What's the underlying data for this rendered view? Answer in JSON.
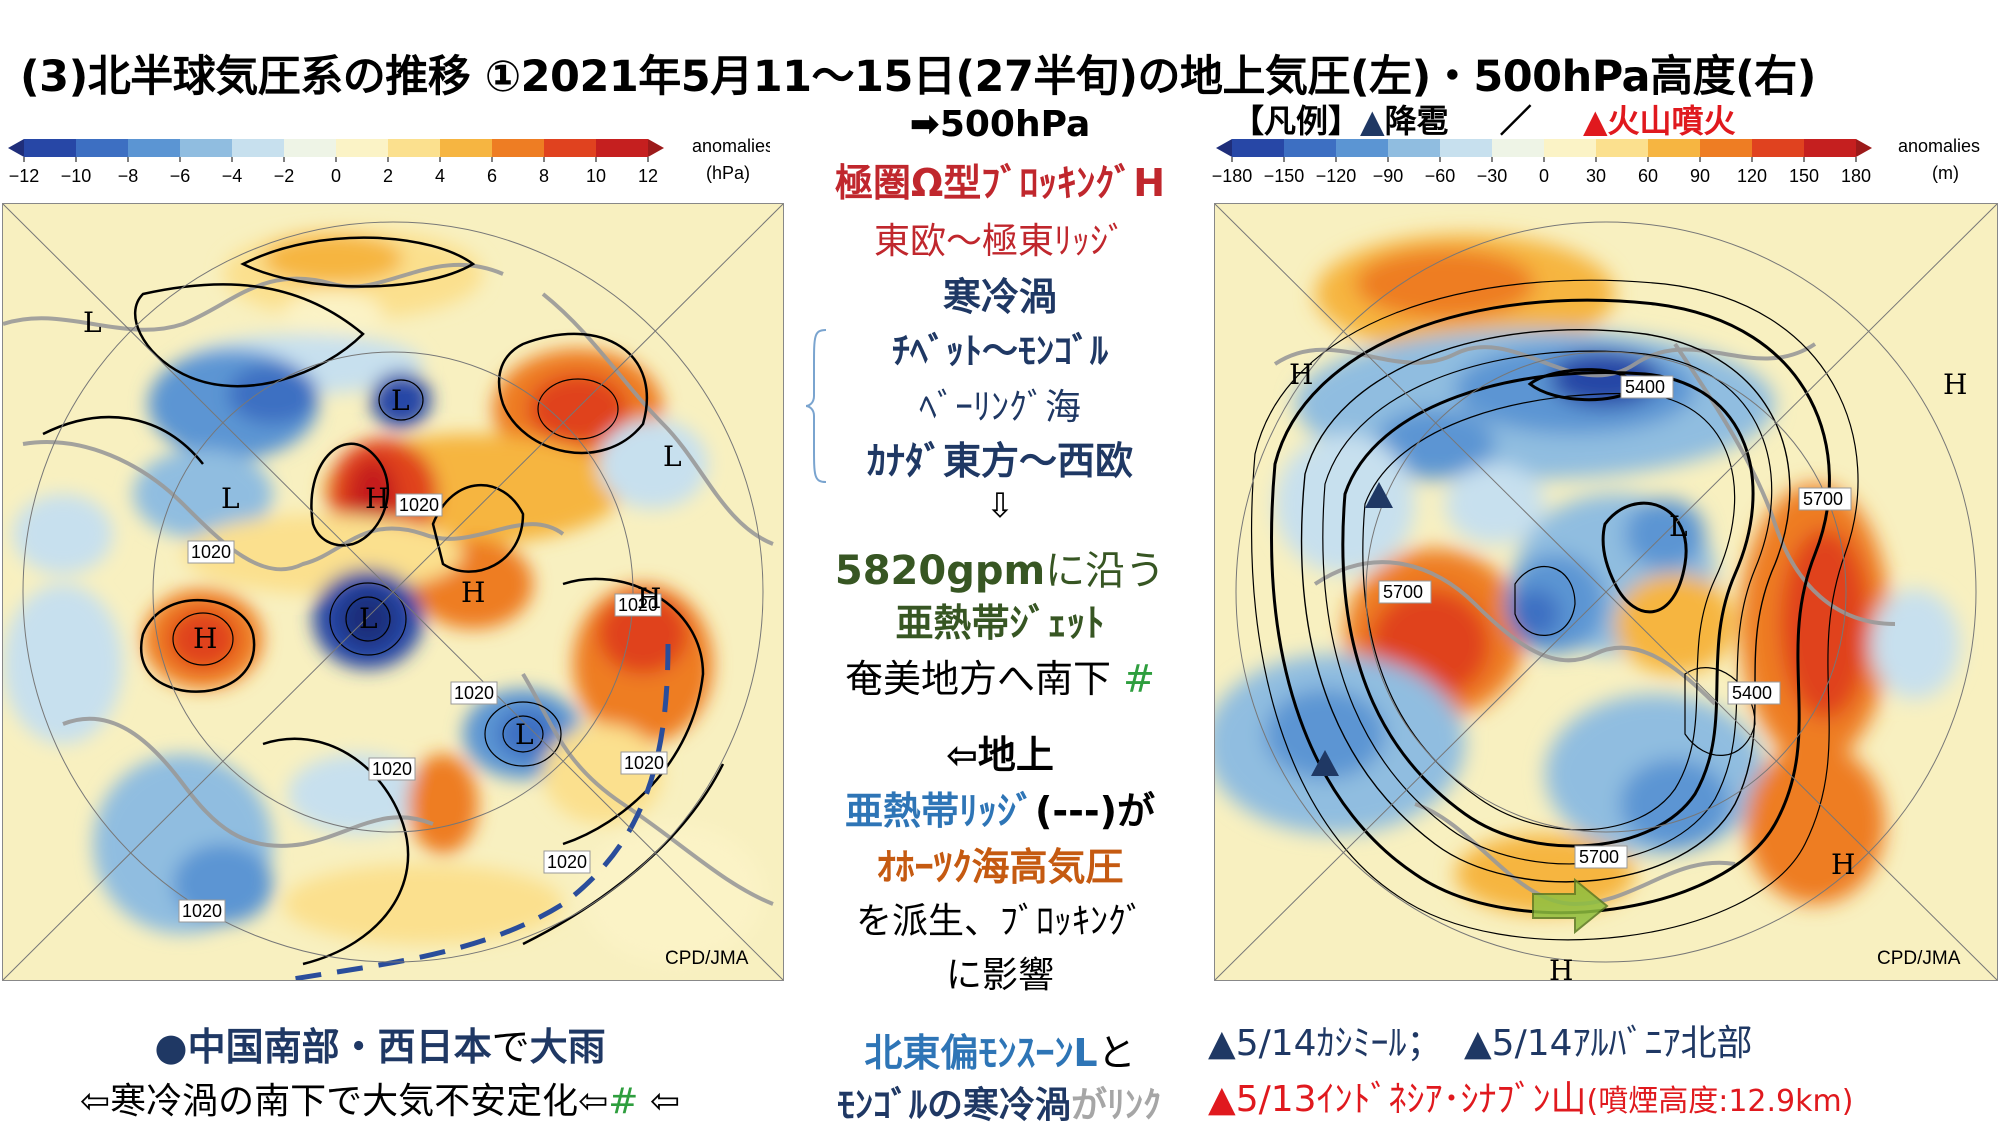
{
  "title": "(3)北半球気圧系の推移 ①2021年5月11～15日(27半旬)の地上気圧(左)・500hPa高度(右)",
  "legend": {
    "bracket": "【凡例】",
    "hail_mark": "▲",
    "hail_label": "降雹",
    "separator": "／",
    "volcano_mark": "▲",
    "volcano_label": "火山噴火"
  },
  "colors": {
    "dark_red": "#c0272d",
    "navy": "#1f3864",
    "green": "#375623",
    "blue": "#2e75b6",
    "orange": "#c55a11",
    "bright_red": "#e0191e",
    "gray": "#a6a6a6",
    "hash_green": "#2e9e3e"
  },
  "left_colorbar": {
    "ticks": [
      "−12",
      "−10",
      "−8",
      "−6",
      "−4",
      "−2",
      "0",
      "2",
      "4",
      "6",
      "8",
      "10",
      "12"
    ],
    "unit_top": "anomalies",
    "unit_bottom": "(hPa)"
  },
  "right_colorbar": {
    "ticks": [
      "−180",
      "−150",
      "−120",
      "−90",
      "−60",
      "−30",
      "0",
      "30",
      "60",
      "90",
      "120",
      "150",
      "180"
    ],
    "unit_top": "anomalies",
    "unit_bottom": "(m)"
  },
  "left_map": {
    "credit": "CPD/JMA",
    "isobar_labels": [
      "1020",
      "1020",
      "1020",
      "1020",
      "1020",
      "1020",
      "1020",
      "1020"
    ],
    "highs": [
      "H",
      "H",
      "H",
      "H"
    ],
    "lows": [
      "L",
      "L",
      "L",
      "L",
      "L",
      "L"
    ]
  },
  "right_map": {
    "credit": "CPD/JMA",
    "height_labels": [
      "5400",
      "5700",
      "5700",
      "5400",
      "5700"
    ],
    "highs": [
      "H",
      "H",
      "H",
      "H"
    ],
    "lows": [
      "L"
    ]
  },
  "center": {
    "arrow_500": "➡500hPa",
    "blocking": "極圏Ω型ﾌﾞﾛｯｷﾝｸﾞH",
    "ridge": "東欧～極東ﾘｯｼﾞ",
    "cold_vortex": "寒冷渦",
    "cv1": "ﾁﾍﾞｯﾄ～ﾓﾝｺﾞﾙ",
    "cv2": "ﾍﾞｰﾘﾝｸﾞ海",
    "cv3": "ｶﾅﾀﾞ東方～西欧",
    "down_arrow": "⇩",
    "gpm_value": "5820gpm",
    "gpm_suffix": "に沿う",
    "jet": "亜熱帯ｼﾞｪｯﾄ",
    "amami": "奄美地方へ南下",
    "hash": "#",
    "surface": "⇦地上",
    "subtrop_ridge": "亜熱帯ﾘｯｼﾞ",
    "dash_paren": "(---)",
    "ga": "が",
    "okhotsk": "ｵﾎｰﾂｸ海高気圧",
    "derive1": "を派生、ﾌﾞﾛｯｷﾝｸﾞ",
    "derive2": "に影響",
    "monsoon": "北東偏ﾓﾝｽｰﾝL",
    "to": "と",
    "mongol": "ﾓﾝｺﾞﾙの",
    "mongol_cv": "寒冷渦",
    "link": "がﾘﾝｸ"
  },
  "bottom_left": {
    "dot": "●",
    "region": "中国南部・西日本",
    "de": "で",
    "heavy_rain": "大雨",
    "line2_a": "⇦寒冷渦の南下で大気不安定化⇦",
    "hash": "#",
    "line2_b": "⇦"
  },
  "bottom_right": {
    "mark1": "▲",
    "ev1": "5/14ｶｼﾐｰﾙ；",
    "mark2": "▲",
    "ev2": "5/14ｱﾙﾊﾞﾆｱ北部",
    "mark3": "▲",
    "ev3": "5/13ｲﾝﾄﾞﾈｼｱ･ｼﾅﾌﾞﾝ山",
    "plume": "(噴煙高度:12.9km)"
  }
}
